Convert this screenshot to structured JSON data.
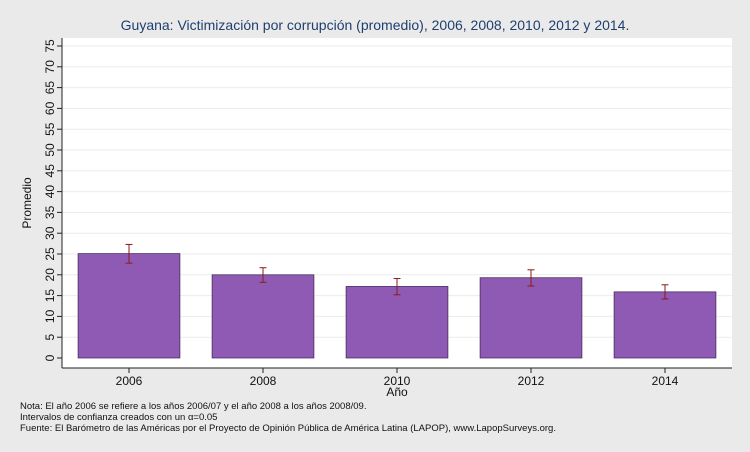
{
  "chart_data": {
    "type": "bar",
    "title": "Guyana: Victimización por corrupción (promedio), 2006, 2008, 2010, 2012 y 2014.",
    "xlabel": "Año",
    "ylabel": "Promedio",
    "categories": [
      "2006",
      "2008",
      "2010",
      "2012",
      "2014"
    ],
    "series": [
      {
        "values": [
          25.1,
          20.0,
          17.2,
          19.3,
          15.9
        ],
        "ci_low": [
          22.8,
          18.2,
          15.2,
          17.3,
          14.2
        ],
        "ci_high": [
          27.3,
          21.7,
          19.1,
          21.2,
          17.6
        ]
      }
    ],
    "ylim": [
      0,
      75
    ],
    "yticks": [
      0,
      5,
      10,
      15,
      20,
      25,
      30,
      35,
      40,
      45,
      50,
      55,
      60,
      65,
      70,
      75
    ],
    "grid": true,
    "bar_color": "#8f5ab3",
    "error_bar_color": "#8b1a1a",
    "background_color": "#eaeaea",
    "plot_background_color": "#ffffff"
  },
  "notes": {
    "line1": "Nota: El año 2006 se refiere a los años 2006/07 y el año 2008 a los años 2008/09.",
    "line2": "Intervalos de confianza creados con un α=0.05",
    "line3": "Fuente: El Barómetro de las Américas por el Proyecto de Opinión Pública de América Latina (LAPOP), www.LapopSurveys.org."
  }
}
